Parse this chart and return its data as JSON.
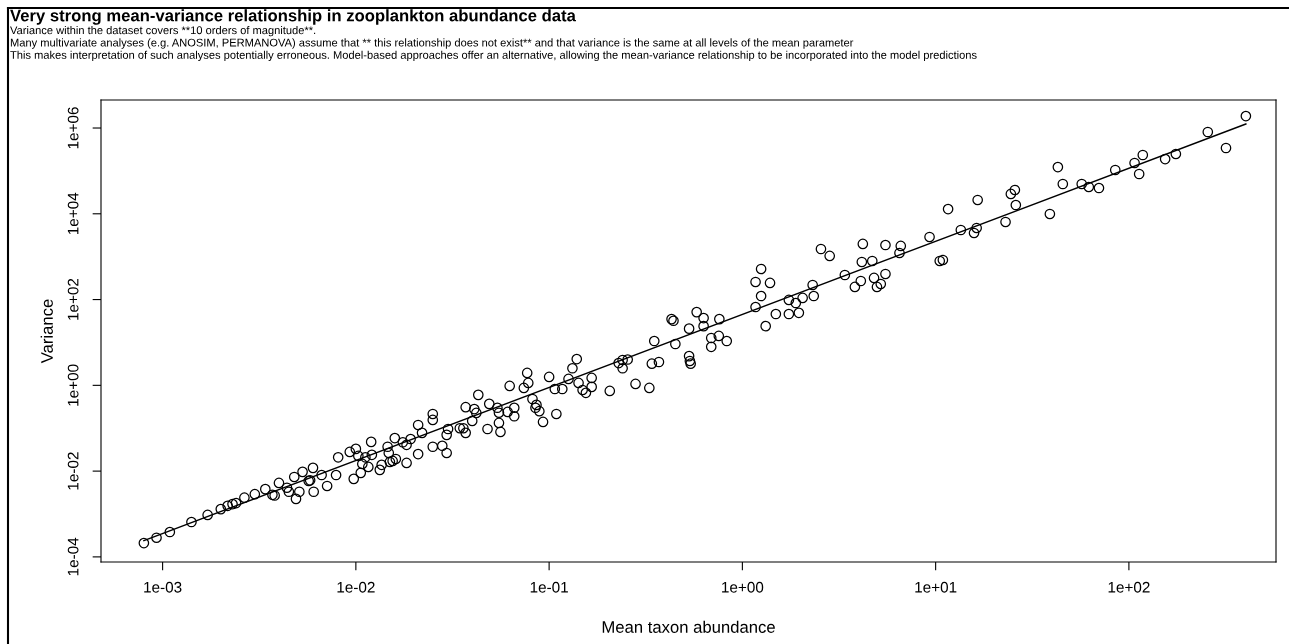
{
  "chart_data": {
    "type": "scatter",
    "title": "Very strong mean-variance relationship in zooplankton abundance data",
    "subtitle": "Variance within the dataset covers **10 orders of magnitude**.\nMany multivariate analyses (e.g. ANOSIM, PERMANOVA) assume that ** this relationship does not exist** and that variance is the same at all levels of the mean parameter\nThis makes interpretation of such analyses potentially erroneous. Model-based approaches offer an alternative, allowing the mean-variance relationship to be incorporated into the model predictions",
    "xlabel": "Mean taxon abundance",
    "ylabel": "Variance",
    "log": "xy",
    "grid": false,
    "xlim": [
      0.00048,
      577
    ],
    "ylim": [
      7.6e-05,
      4500000
    ],
    "xticks": [
      {
        "value": 0.001,
        "label": "1e-03"
      },
      {
        "value": 0.01,
        "label": "1e-02"
      },
      {
        "value": 0.1,
        "label": "1e-01"
      },
      {
        "value": 1,
        "label": "1e+00"
      },
      {
        "value": 10,
        "label": "1e+01"
      },
      {
        "value": 100,
        "label": "1e+02"
      }
    ],
    "yticks": [
      {
        "value": 0.0001,
        "label": "1e-04"
      },
      {
        "value": 0.01,
        "label": "1e-02"
      },
      {
        "value": 1,
        "label": "1e+00"
      },
      {
        "value": 100,
        "label": "1e+02"
      },
      {
        "value": 10000,
        "label": "1e+04"
      },
      {
        "value": 1000000,
        "label": "1e+06"
      }
    ],
    "series": [
      {
        "marker": "circle",
        "color": "#000000",
        "x": [
          0.0008,
          0.00093,
          0.00109,
          0.00141,
          0.00171,
          0.002,
          0.00217,
          0.0023,
          0.0024,
          0.00265,
          0.003,
          0.0034,
          0.0037,
          0.0038,
          0.004,
          0.0044,
          0.0045,
          0.0048,
          0.0051,
          0.0049,
          0.0053,
          0.0057,
          0.0058,
          0.006,
          0.00605,
          0.00665,
          0.0071,
          0.0079,
          0.0081,
          0.0093,
          0.00975,
          0.01,
          0.0103,
          0.0106,
          0.0108,
          0.0112,
          0.0116,
          0.012,
          0.0121,
          0.0133,
          0.0136,
          0.0146,
          0.0148,
          0.015,
          0.0155,
          0.0159,
          0.0161,
          0.0175,
          0.0183,
          0.0183,
          0.0192,
          0.021,
          0.021,
          0.022,
          0.025,
          0.025,
          0.025,
          0.028,
          0.0295,
          0.0295,
          0.03,
          0.0345,
          0.036,
          0.037,
          0.037,
          0.04,
          0.041,
          0.042,
          0.043,
          0.048,
          0.049,
          0.054,
          0.055,
          0.055,
          0.056,
          0.061,
          0.0625,
          0.066,
          0.066,
          0.074,
          0.077,
          0.078,
          0.082,
          0.085,
          0.086,
          0.089,
          0.093,
          0.1,
          0.107,
          0.109,
          0.117,
          0.126,
          0.132,
          0.139,
          0.142,
          0.149,
          0.155,
          0.166,
          0.166,
          0.206,
          0.229,
          0.24,
          0.255,
          0.24,
          0.28,
          0.33,
          0.34,
          0.35,
          0.37,
          0.45,
          0.43,
          0.44,
          0.53,
          0.53,
          0.535,
          0.54,
          0.58,
          0.63,
          0.63,
          0.69,
          0.69,
          0.755,
          0.76,
          0.83,
          1.17,
          1.17,
          1.25,
          1.25,
          1.32,
          1.39,
          1.49,
          1.74,
          1.74,
          1.89,
          1.96,
          2.05,
          2.31,
          2.34,
          2.55,
          2.83,
          3.39,
          3.82,
          4.1,
          4.15,
          4.2,
          4.7,
          4.8,
          4.97,
          5.2,
          5.5,
          5.5,
          6.6,
          6.5,
          9.3,
          11.6,
          10.5,
          10.9,
          13.5,
          15.8,
          16.3,
          16.5,
          23,
          24.5,
          25.7,
          26,
          39,
          42.9,
          45.5,
          57,
          62,
          70,
          85,
          107,
          113,
          118,
          154,
          175,
          256,
          318,
          403
        ],
        "values": [
          0.00021,
          0.00028,
          0.00038,
          0.00065,
          0.00095,
          0.0013,
          0.00155,
          0.0017,
          0.0018,
          0.0024,
          0.0029,
          0.0038,
          0.0028,
          0.0027,
          0.0053,
          0.0041,
          0.0033,
          0.0073,
          0.0033,
          0.00225,
          0.0096,
          0.0059,
          0.0061,
          0.0119,
          0.0033,
          0.0081,
          0.0045,
          0.0081,
          0.021,
          0.028,
          0.0066,
          0.033,
          0.0226,
          0.0091,
          0.0147,
          0.021,
          0.0125,
          0.048,
          0.024,
          0.0107,
          0.014,
          0.037,
          0.0265,
          0.0164,
          0.0173,
          0.059,
          0.0192,
          0.047,
          0.0155,
          0.041,
          0.056,
          0.119,
          0.025,
          0.078,
          0.215,
          0.156,
          0.037,
          0.039,
          0.0265,
          0.07,
          0.096,
          0.1,
          0.1,
          0.078,
          0.31,
          0.148,
          0.28,
          0.227,
          0.6,
          0.096,
          0.37,
          0.3,
          0.23,
          0.133,
          0.082,
          0.24,
          0.97,
          0.3,
          0.19,
          0.87,
          1.95,
          1.14,
          0.48,
          0.3,
          0.35,
          0.25,
          0.14,
          1.57,
          0.82,
          0.215,
          0.82,
          1.41,
          2.5,
          4.1,
          1.14,
          0.78,
          0.67,
          1.49,
          0.92,
          0.74,
          3.3,
          3.9,
          4.0,
          2.5,
          1.08,
          0.87,
          3.2,
          10.8,
          3.5,
          9.2,
          35,
          32,
          21,
          4.8,
          3.7,
          3.2,
          51,
          37,
          24,
          12.7,
          7.9,
          14.2,
          35,
          10.8,
          67,
          257,
          517,
          121,
          24,
          244,
          46,
          98,
          46,
          83,
          49,
          109,
          219,
          121,
          1510,
          1040,
          374,
          197,
          271,
          752,
          1980,
          794,
          319,
          197,
          231,
          395,
          1870,
          1780,
          1220,
          2880,
          12900,
          794,
          838,
          4190,
          3570,
          4670,
          21000,
          6440,
          29000,
          35900,
          16000,
          9900,
          123000,
          49500,
          49500,
          42200,
          39900,
          105000,
          153000,
          84700,
          235000,
          189000,
          248000,
          807000,
          342000,
          1900000
        ]
      },
      {
        "type": "line",
        "color": "#000000",
        "x": [
          0.0008,
          403
        ],
        "values": [
          0.00024,
          1240000
        ]
      }
    ]
  }
}
